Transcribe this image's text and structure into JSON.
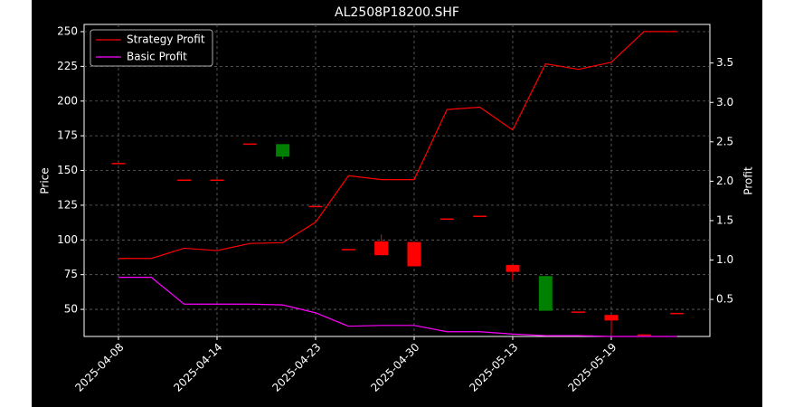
{
  "chart_data": {
    "type": "candlestick",
    "title": "AL2508P18200.SHF",
    "ylabel": "Price",
    "y2label": "Profit",
    "categories": [
      "2025-04-08",
      null,
      null,
      "2025-04-14",
      null,
      null,
      "2025-04-23",
      null,
      null,
      "2025-04-30",
      null,
      null,
      "2025-05-13",
      null,
      null,
      "2025-05-19",
      null,
      null
    ],
    "open": [
      155,
      null,
      143,
      143,
      169,
      169,
      124,
      93,
      89,
      81,
      115,
      117,
      77,
      74,
      48,
      42,
      31.5,
      47
    ],
    "high": [
      155,
      null,
      143,
      143,
      169,
      169,
      124,
      93,
      104,
      98.5,
      115,
      117,
      82,
      74,
      48,
      46,
      31.5,
      47
    ],
    "low": [
      155,
      null,
      143,
      143,
      169,
      158,
      124,
      93,
      89,
      81,
      115,
      117,
      71,
      49,
      48,
      32,
      31.5,
      47
    ],
    "close": [
      155,
      null,
      143,
      143,
      169,
      160,
      124,
      93,
      99,
      98.5,
      115,
      117,
      82,
      49,
      48,
      46,
      31.5,
      47
    ],
    "up_color": "#ff0000",
    "down_color": "#008000",
    "series": [
      {
        "name": "Strategy Profit",
        "color": "#ff0000",
        "axis": "y2",
        "values": [
          1.02,
          1.02,
          1.15,
          1.12,
          1.21,
          1.22,
          1.48,
          2.07,
          2.02,
          2.02,
          2.91,
          2.94,
          2.65,
          3.49,
          3.42,
          3.51,
          3.9,
          3.9
        ]
      },
      {
        "name": "Basic Profit",
        "color": "#ff00ff",
        "axis": "y2",
        "values": [
          0.78,
          0.78,
          0.44,
          0.44,
          0.44,
          0.43,
          0.33,
          0.16,
          0.17,
          0.17,
          0.09,
          0.09,
          0.06,
          0.04,
          0.04,
          0.03,
          0.03,
          0.03
        ]
      }
    ],
    "ylim": [
      30.5,
      255.2
    ],
    "yticks": [
      50,
      75,
      100,
      125,
      150,
      175,
      200,
      225,
      250
    ],
    "y2lim": [
      0.03,
      3.99
    ],
    "y2ticks": [
      0.5,
      {
        "value": 1,
        "label": "1.0"
      },
      1.5,
      {
        "value": 2,
        "label": "2.0"
      },
      2.5,
      {
        "value": 3,
        "label": "3.0"
      },
      3.5
    ],
    "grid": true,
    "legend": "upper left"
  }
}
